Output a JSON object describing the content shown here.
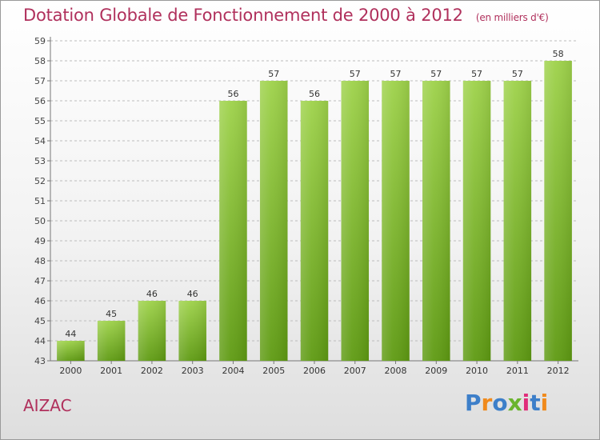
{
  "title": "Dotation Globale de Fonctionnement de 2000 à 2012",
  "unit_note": "(en milliers d'€)",
  "commune": "AIZAC",
  "logo": {
    "text": "Proxiti",
    "letter_colors": [
      "#3d7fc9",
      "#f08a1c",
      "#3d7fc9",
      "#6ab42d",
      "#e02d7a",
      "#3d7fc9",
      "#f08a1c"
    ]
  },
  "colors": {
    "title": "#b0305c",
    "bar_light": "#9ed24a",
    "bar_dark": "#5e9a12",
    "grid": "#bdbdbd"
  },
  "chart_data": {
    "type": "bar",
    "categories": [
      "2000",
      "2001",
      "2002",
      "2003",
      "2004",
      "2005",
      "2006",
      "2007",
      "2008",
      "2009",
      "2010",
      "2011",
      "2012"
    ],
    "values": [
      44,
      45,
      46,
      46,
      56,
      57,
      56,
      57,
      57,
      57,
      57,
      57,
      58
    ],
    "ylim": [
      43,
      59
    ],
    "yticks": [
      43,
      44,
      45,
      46,
      47,
      48,
      49,
      50,
      51,
      52,
      53,
      54,
      55,
      56,
      57,
      58,
      59
    ],
    "grid": true,
    "data_labels": true
  }
}
